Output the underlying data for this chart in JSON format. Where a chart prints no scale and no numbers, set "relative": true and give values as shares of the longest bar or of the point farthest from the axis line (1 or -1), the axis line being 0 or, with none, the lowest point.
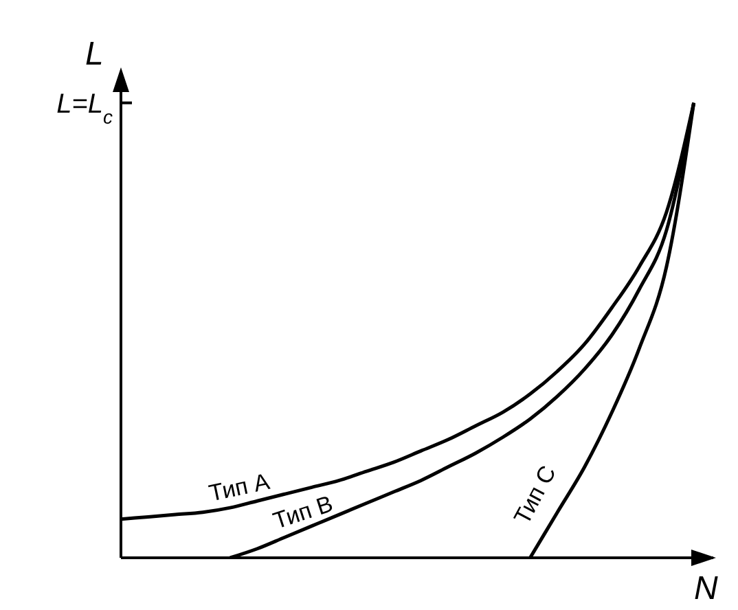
{
  "chart_data": {
    "type": "line",
    "relative": true,
    "xlabel": "N",
    "ylabel": "L",
    "annotations": [
      "L=L$_{c}$"
    ],
    "categories": [
      null,
      null,
      null,
      null,
      null,
      null,
      null,
      null,
      null,
      null,
      null,
      null,
      null,
      null,
      null,
      null,
      null,
      null,
      null,
      null,
      null,
      null
    ],
    "series": [
      {
        "name": "Тип A",
        "color": "#000000",
        "values": [
          0.085,
          0.09,
          0.095,
          0.1,
          0.11,
          0.125,
          0.14,
          0.155,
          0.17,
          0.19,
          0.21,
          0.235,
          0.26,
          0.29,
          0.32,
          0.36,
          0.41,
          0.47,
          0.55,
          0.64,
          0.76,
          1
        ]
      },
      {
        "name": "Тип B",
        "color": "#000000",
        "values": [
          null,
          null,
          null,
          null,
          0,
          0.02,
          0.045,
          0.07,
          0.095,
          0.12,
          0.145,
          0.17,
          0.2,
          0.23,
          0.265,
          0.305,
          0.355,
          0.415,
          0.49,
          0.59,
          0.72,
          1
        ]
      },
      {
        "name": "Тип C",
        "color": "#000000",
        "values": [
          null,
          null,
          null,
          null,
          null,
          null,
          null,
          null,
          null,
          null,
          null,
          null,
          null,
          null,
          null,
          0,
          0.1,
          0.2,
          0.32,
          0.46,
          0.64,
          1
        ]
      }
    ],
    "legend": false,
    "grid": false,
    "marker": "none",
    "line_style": "solid"
  }
}
